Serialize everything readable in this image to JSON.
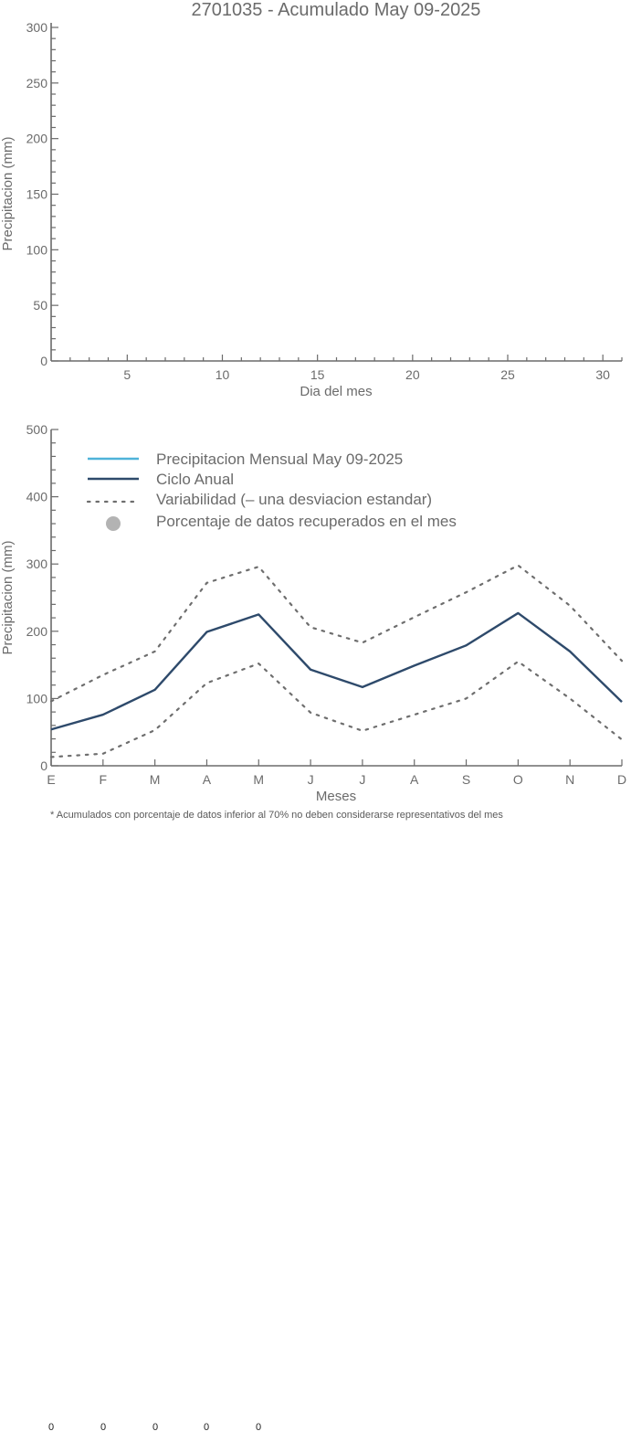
{
  "chart_data": [
    {
      "type": "line",
      "title": "2701035 - Acumulado May 09-2025",
      "xlabel": "Dia del mes",
      "ylabel": "Precipitacion (mm)",
      "xlim": [
        1,
        31
      ],
      "ylim": [
        0,
        300
      ],
      "x_ticks": [
        5,
        10,
        15,
        20,
        25,
        30
      ],
      "y_ticks": [
        0,
        50,
        100,
        150,
        200,
        250,
        300
      ],
      "series": [],
      "grid": false
    },
    {
      "type": "line",
      "xlabel": "Meses",
      "ylabel": "Precipitacion (mm)",
      "categories": [
        "E",
        "F",
        "M",
        "A",
        "M",
        "J",
        "J",
        "A",
        "S",
        "O",
        "N",
        "D"
      ],
      "ylim": [
        0,
        500
      ],
      "y_ticks": [
        0,
        100,
        200,
        300,
        400,
        500
      ],
      "series": [
        {
          "name": "Ciclo Anual",
          "color": "#2e4a6b",
          "style": "solid",
          "values": [
            54,
            76,
            113,
            199,
            225,
            143,
            117,
            149,
            179,
            227,
            170,
            95
          ]
        },
        {
          "name": "Variabilidad (– una desviacion estandar)",
          "color": "#6e6e6e",
          "style": "dotted",
          "values": [
            96,
            135,
            170,
            272,
            296,
            206,
            183,
            221,
            258,
            298,
            238,
            156
          ]
        },
        {
          "name": "Variabilidad (– una desviacion estandar)",
          "color": "#6e6e6e",
          "style": "dotted",
          "values": [
            13,
            18,
            53,
            123,
            152,
            79,
            52,
            76,
            100,
            155,
            100,
            39
          ]
        }
      ],
      "legend": {
        "placement": "top-left",
        "entries": [
          {
            "label": "Precipitacion Mensual May 09-2025",
            "color": "#4fb3d9",
            "symbol": "line"
          },
          {
            "label": "Ciclo Anual",
            "color": "#2e4a6b",
            "symbol": "line"
          },
          {
            "label": "Variabilidad (– una desviacion estandar)",
            "color": "#6e6e6e",
            "symbol": "dotted"
          },
          {
            "label": "Porcentaje de datos recuperados en el mes",
            "color": "#b3b3b3",
            "symbol": "circle"
          }
        ]
      },
      "grid": false
    }
  ],
  "footnote": "* Acumulados con porcentaje de datos inferior al 70% no deben considerarse representativos del mes",
  "bottom_values": [
    "0",
    "0",
    "0",
    "0",
    "0"
  ]
}
